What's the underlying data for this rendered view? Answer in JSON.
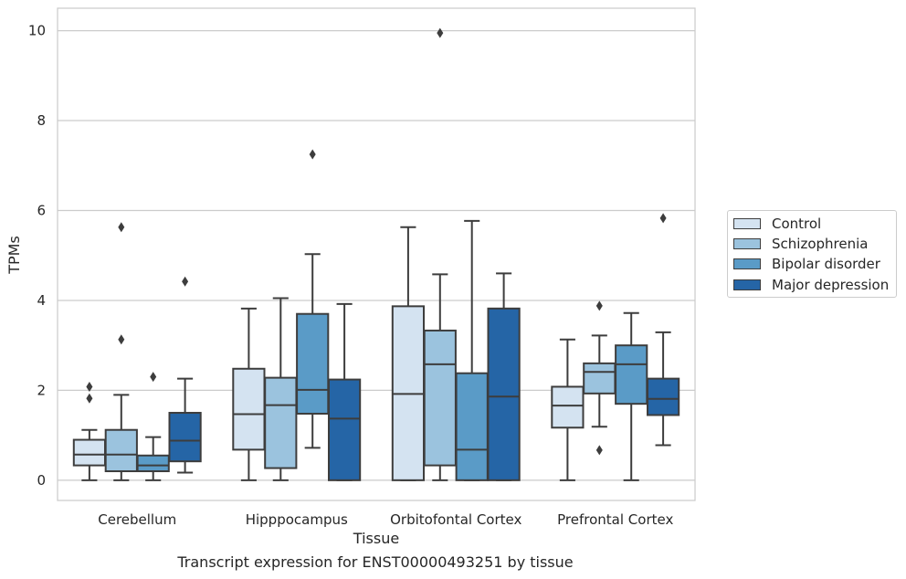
{
  "chart_data": {
    "type": "box",
    "xlabel": "Tissue",
    "ylabel": "TPMs",
    "ylim": [
      -0.45,
      10.5
    ],
    "yticks": [
      0,
      2,
      4,
      6,
      8,
      10
    ],
    "grid": "horizontal",
    "legend_position": "right",
    "categories": [
      "Cerebellum",
      "Hipppocampus",
      "Orbitofontal Cortex",
      "Prefrontal Cortex"
    ],
    "series": [
      {
        "name": "Control",
        "color": "#d4e3f1",
        "boxes": [
          {
            "whislo": 0.0,
            "q1": 0.33,
            "med": 0.57,
            "q3": 0.9,
            "whishi": 1.12,
            "fliers": [
              1.82,
              2.08
            ]
          },
          {
            "whislo": 0.0,
            "q1": 0.68,
            "med": 1.47,
            "q3": 2.48,
            "whishi": 3.82,
            "fliers": []
          },
          {
            "whislo": 0.0,
            "q1": 0.0,
            "med": 1.92,
            "q3": 3.87,
            "whishi": 5.63,
            "fliers": []
          },
          {
            "whislo": 0.0,
            "q1": 1.17,
            "med": 1.66,
            "q3": 2.08,
            "whishi": 3.13,
            "fliers": []
          }
        ]
      },
      {
        "name": "Schizophrenia",
        "color": "#9bc3de",
        "boxes": [
          {
            "whislo": 0.0,
            "q1": 0.2,
            "med": 0.57,
            "q3": 1.12,
            "whishi": 1.9,
            "fliers": [
              3.13,
              5.63
            ]
          },
          {
            "whislo": 0.0,
            "q1": 0.27,
            "med": 1.67,
            "q3": 2.28,
            "whishi": 4.05,
            "fliers": []
          },
          {
            "whislo": 0.0,
            "q1": 0.33,
            "med": 2.58,
            "q3": 3.33,
            "whishi": 4.58,
            "fliers": [
              9.95
            ]
          },
          {
            "whislo": 1.19,
            "q1": 1.93,
            "med": 2.41,
            "q3": 2.6,
            "whishi": 3.22,
            "fliers": [
              0.67,
              3.88
            ]
          }
        ]
      },
      {
        "name": "Bipolar disorder",
        "color": "#5a9bc7",
        "boxes": [
          {
            "whislo": 0.0,
            "q1": 0.2,
            "med": 0.33,
            "q3": 0.55,
            "whishi": 0.96,
            "fliers": [
              2.3
            ]
          },
          {
            "whislo": 0.72,
            "q1": 1.48,
            "med": 2.01,
            "q3": 3.7,
            "whishi": 5.03,
            "fliers": [
              7.25
            ]
          },
          {
            "whislo": 0.0,
            "q1": 0.0,
            "med": 0.68,
            "q3": 2.38,
            "whishi": 5.77,
            "fliers": []
          },
          {
            "whislo": 0.0,
            "q1": 1.7,
            "med": 2.58,
            "q3": 3.0,
            "whishi": 3.72,
            "fliers": []
          }
        ]
      },
      {
        "name": "Major depression",
        "color": "#2565a6",
        "boxes": [
          {
            "whislo": 0.17,
            "q1": 0.42,
            "med": 0.88,
            "q3": 1.5,
            "whishi": 2.26,
            "fliers": [
              4.42
            ]
          },
          {
            "whislo": 0.0,
            "q1": 0.0,
            "med": 1.37,
            "q3": 2.24,
            "whishi": 3.92,
            "fliers": []
          },
          {
            "whislo": 0.0,
            "q1": 0.0,
            "med": 1.86,
            "q3": 3.82,
            "whishi": 4.6,
            "fliers": []
          },
          {
            "whislo": 0.78,
            "q1": 1.45,
            "med": 1.81,
            "q3": 2.26,
            "whishi": 3.29,
            "fliers": [
              5.83
            ]
          }
        ]
      }
    ]
  },
  "caption": "Transcript expression for ENST00000493251 by tissue"
}
